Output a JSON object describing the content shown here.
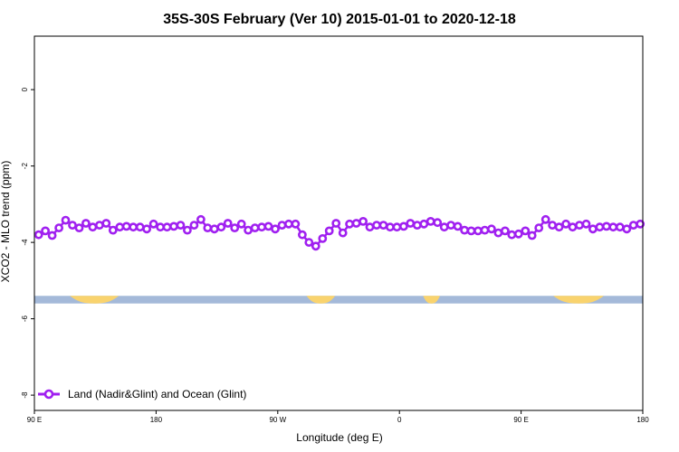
{
  "chart_data": {
    "type": "line",
    "title": "35S-30S February (Ver 10)   2015-01-01 to 2020-12-18",
    "xlabel": "Longitude (deg E)",
    "ylabel": "XCO2 - MLO trend (ppm)",
    "xlim": [
      90,
      450
    ],
    "ylim": [
      -8.4,
      1.4
    ],
    "x_ticks": [
      {
        "value": 90,
        "label": "90 E"
      },
      {
        "value": 162,
        "label": "180"
      },
      {
        "value": 234,
        "label": "90 W"
      },
      {
        "value": 306,
        "label": "0"
      },
      {
        "value": 378,
        "label": "90 E"
      },
      {
        "value": 450,
        "label": "180"
      }
    ],
    "y_ticks": [
      {
        "value": 0,
        "label": "0"
      },
      {
        "value": -2,
        "label": "-2"
      },
      {
        "value": -4,
        "label": "-4"
      },
      {
        "value": -6,
        "label": "-6"
      },
      {
        "value": -8,
        "label": "-8"
      }
    ],
    "grid": false,
    "legend_position": "bottom-left",
    "series": [
      {
        "name": "Land (Nadir&Glint) and Ocean (Glint)",
        "color": "#a020f0",
        "x": [
          92.5,
          96.5,
          100.5,
          104.5,
          108.5,
          112.5,
          116.5,
          120.5,
          124.5,
          128.5,
          132.5,
          136.5,
          140.5,
          144.5,
          148.5,
          152.5,
          156.5,
          160.5,
          164.5,
          168.5,
          172.5,
          176.5,
          180.5,
          184.5,
          188.5,
          192.5,
          196.5,
          200.5,
          204.5,
          208.5,
          212.5,
          216.5,
          220.5,
          224.5,
          228.5,
          232.5,
          236.5,
          240.5,
          244.5,
          248.5,
          252.5,
          256.5,
          260.5,
          264.5,
          268.5,
          272.5,
          276.5,
          280.5,
          284.5,
          288.5,
          292.5,
          296.5,
          300.5,
          304.5,
          308.5,
          312.5,
          316.5,
          320.5,
          324.5,
          328.5,
          332.5,
          336.5,
          340.5,
          344.5,
          348.5,
          352.5,
          356.5,
          360.5,
          364.5,
          368.5,
          372.5,
          376.5,
          380.5,
          384.5,
          388.5,
          392.5,
          396.5,
          400.5,
          404.5,
          408.5,
          412.5,
          416.5,
          420.5,
          424.5,
          428.5,
          432.5,
          436.5,
          440.5,
          444.5,
          448.5
        ],
        "y": [
          -3.8,
          -3.7,
          -3.82,
          -3.62,
          -3.42,
          -3.55,
          -3.62,
          -3.5,
          -3.6,
          -3.55,
          -3.5,
          -3.68,
          -3.6,
          -3.58,
          -3.6,
          -3.6,
          -3.65,
          -3.52,
          -3.6,
          -3.6,
          -3.58,
          -3.55,
          -3.68,
          -3.55,
          -3.4,
          -3.62,
          -3.65,
          -3.6,
          -3.5,
          -3.62,
          -3.52,
          -3.68,
          -3.62,
          -3.6,
          -3.58,
          -3.65,
          -3.55,
          -3.52,
          -3.52,
          -3.8,
          -4.0,
          -4.1,
          -3.9,
          -3.7,
          -3.5,
          -3.75,
          -3.52,
          -3.5,
          -3.45,
          -3.6,
          -3.55,
          -3.55,
          -3.6,
          -3.6,
          -3.58,
          -3.5,
          -3.55,
          -3.52,
          -3.45,
          -3.48,
          -3.6,
          -3.55,
          -3.58,
          -3.68,
          -3.7,
          -3.7,
          -3.68,
          -3.65,
          -3.75,
          -3.7,
          -3.8,
          -3.78,
          -3.7,
          -3.82,
          -3.62,
          -3.4,
          -3.55,
          -3.6,
          -3.52,
          -3.6,
          -3.55,
          -3.52,
          -3.65,
          -3.6,
          -3.58,
          -3.6,
          -3.6,
          -3.65,
          -3.55,
          -3.52
        ]
      }
    ],
    "surface_band": {
      "y_range": [
        -5.6,
        -5.4
      ],
      "ocean_color": "#a4b9d9",
      "land_color": "#f9d36e",
      "land_segments": [
        [
          111,
          140
        ],
        [
          251,
          268
        ],
        [
          320,
          330
        ],
        [
          397,
          427
        ]
      ]
    }
  }
}
